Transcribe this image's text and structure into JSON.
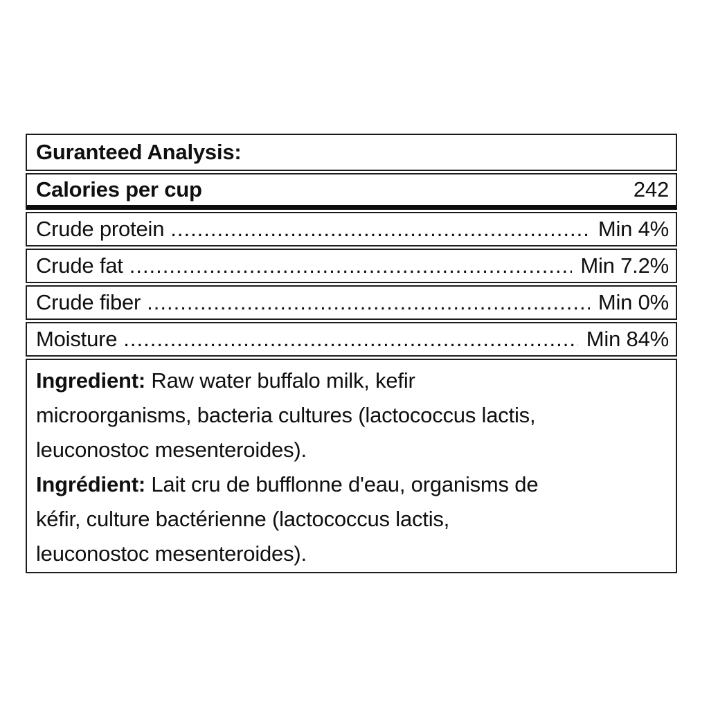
{
  "colors": {
    "background": "#ffffff",
    "border": "#1c1c1c",
    "thick_rule": "#0d0d0d",
    "text": "#0f0f0f"
  },
  "table": {
    "title": "Guranteed Analysis:",
    "calories_row": {
      "label": "Calories per cup",
      "value": "242"
    },
    "leader_dots": "........................................................................................................................",
    "nutrient_rows": [
      {
        "label": "Crude protein",
        "value": "Min 4%"
      },
      {
        "label": "Crude fat",
        "value": "Min 7.2%"
      },
      {
        "label": "Crude fiber",
        "value": "Min 0%"
      },
      {
        "label": "Moisture",
        "value": "Min 84%"
      }
    ],
    "ingredients_en": {
      "label": "Ingredient:",
      "line1_rest": " Raw water buffalo milk, kefir",
      "line2": "microorganisms, bacteria cultures (lactococcus lactis,",
      "line3": "leuconostoc mesenteroides)."
    },
    "ingredients_fr": {
      "label": "Ingrédient:",
      "line1_rest": " Lait cru de bufflonne d'eau, organisms de",
      "line2": "kéfir, culture bactérienne (lactococcus lactis,",
      "line3": "leuconostoc mesenteroides)."
    }
  }
}
